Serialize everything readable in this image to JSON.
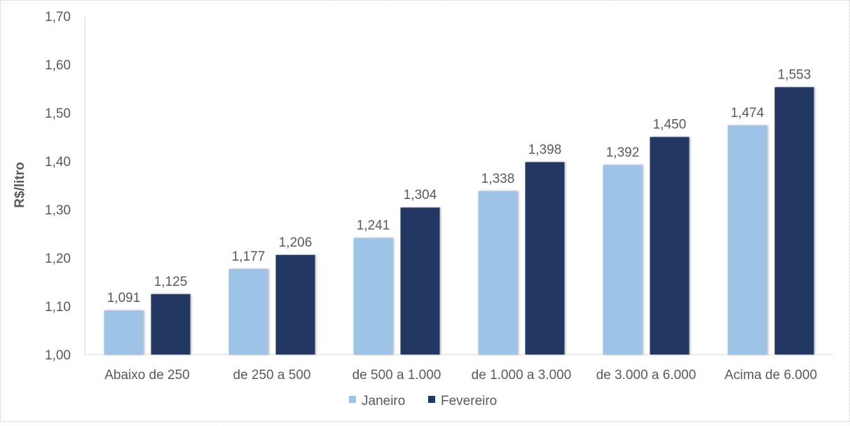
{
  "chart_data": {
    "type": "bar",
    "title": "",
    "xlabel": "",
    "ylabel": "R$/litro",
    "ylim": [
      1.0,
      1.7
    ],
    "yticks": [
      "1,00",
      "1,10",
      "1,20",
      "1,30",
      "1,40",
      "1,50",
      "1,60",
      "1,70"
    ],
    "grid": false,
    "legend_position": "bottom",
    "categories": [
      "Abaixo de 250",
      "de 250 a 500",
      "de 500 a 1.000",
      "de 1.000 a 3.000",
      "de 3.000 a 6.000",
      "Acima de 6.000"
    ],
    "series": [
      {
        "name": "Janeiro",
        "color": "#9DC3E6",
        "values": [
          1.091,
          1.177,
          1.241,
          1.338,
          1.392,
          1.474
        ],
        "labels": [
          "1,091",
          "1,177",
          "1,241",
          "1,338",
          "1,392",
          "1,474"
        ]
      },
      {
        "name": "Fevereiro",
        "color": "#203864",
        "values": [
          1.125,
          1.206,
          1.304,
          1.398,
          1.45,
          1.553
        ],
        "labels": [
          "1,125",
          "1,206",
          "1,304",
          "1,398",
          "1,450",
          "1,553"
        ]
      }
    ]
  }
}
